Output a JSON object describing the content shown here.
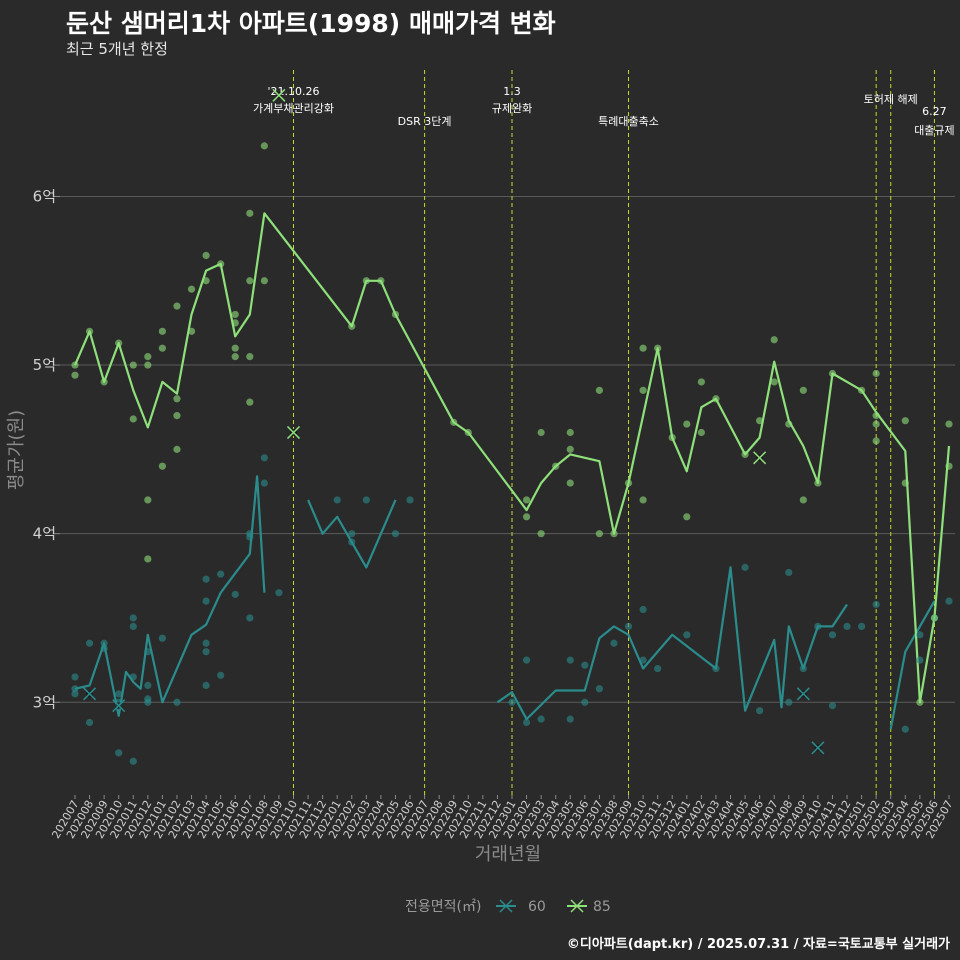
{
  "header": {
    "title": "둔산 샘머리1차 아파트(1998) 매매가격 변화",
    "subtitle": "최근 5개년 한정"
  },
  "footer": {
    "caption": "©디아파트(dapt.kr) / 2025.07.31 / 자료=국토교통부 실거래가"
  },
  "colors": {
    "background": "#2b2a2a",
    "grid": "#5a5a5a",
    "event_line": "#c8d92a",
    "s60": "#2a8c8c",
    "s85": "#8ee07a"
  },
  "chart_data": {
    "type": "line",
    "xlabel": "거래년월",
    "ylabel": "평균가(원)",
    "ylim": [
      2.45,
      6.75
    ],
    "yticks": [
      {
        "v": 3,
        "label": "3억"
      },
      {
        "v": 4,
        "label": "4억"
      },
      {
        "v": 5,
        "label": "5억"
      },
      {
        "v": 6,
        "label": "6억"
      }
    ],
    "x": [
      "202007",
      "202008",
      "202009",
      "202010",
      "202011",
      "202012",
      "202101",
      "202102",
      "202103",
      "202104",
      "202105",
      "202106",
      "202107",
      "202108",
      "202109",
      "202110",
      "202111",
      "202112",
      "202201",
      "202202",
      "202203",
      "202204",
      "202205",
      "202206",
      "202207",
      "202208",
      "202209",
      "202210",
      "202211",
      "202212",
      "202301",
      "202302",
      "202303",
      "202304",
      "202305",
      "202306",
      "202307",
      "202308",
      "202309",
      "202310",
      "202311",
      "202312",
      "202401",
      "202402",
      "202403",
      "202404",
      "202405",
      "202406",
      "202407",
      "202408",
      "202409",
      "202410",
      "202411",
      "202412",
      "202501",
      "202502",
      "202503",
      "202504",
      "202505",
      "202506",
      "202507"
    ],
    "legend": {
      "title": "전용면적(㎡)",
      "items": [
        "60",
        "85"
      ]
    },
    "series": [
      {
        "name": "60",
        "segments": [
          [
            [
              "202007",
              3.08
            ],
            [
              "202008",
              3.1
            ],
            [
              "202009",
              3.35
            ],
            [
              "202010",
              2.92
            ],
            [
              "202010.5",
              3.18
            ],
            [
              "202011",
              3.12
            ],
            [
              "202011.5",
              3.08
            ],
            [
              "202012",
              3.4
            ],
            [
              "202101",
              3.0
            ],
            [
              "202103",
              3.4
            ],
            [
              "202104",
              3.46
            ],
            [
              "202105",
              3.65
            ],
            [
              "202107",
              3.88
            ],
            [
              "202107.5",
              4.34
            ],
            [
              "202108",
              3.65
            ]
          ],
          [
            [
              "202111",
              4.2
            ],
            [
              "202112",
              4.0
            ],
            [
              "202201",
              4.1
            ],
            [
              "202203",
              3.8
            ],
            [
              "202204",
              4.0
            ],
            [
              "202205",
              4.2
            ]
          ],
          [
            [
              "202212",
              3.0
            ],
            [
              "202301",
              3.06
            ],
            [
              "202302",
              2.9
            ],
            [
              "202304",
              3.07
            ],
            [
              "202306",
              3.07
            ],
            [
              "202307",
              3.38
            ],
            [
              "202308",
              3.45
            ],
            [
              "202309",
              3.4
            ],
            [
              "202310",
              3.2
            ],
            [
              "202312",
              3.4
            ],
            [
              "202403",
              3.2
            ],
            [
              "202404",
              3.8
            ],
            [
              "202405",
              2.95
            ],
            [
              "202407",
              3.37
            ],
            [
              "202407.5",
              2.97
            ],
            [
              "202408",
              3.45
            ],
            [
              "202409",
              3.2
            ],
            [
              "202410",
              3.45
            ],
            [
              "202411",
              3.45
            ],
            [
              "202412",
              3.58
            ]
          ],
          [
            [
              "202503",
              2.84
            ],
            [
              "202504",
              3.3
            ],
            [
              "202505",
              3.45
            ],
            [
              "202506",
              3.6
            ]
          ]
        ],
        "points": [
          [
            "202007",
            3.15
          ],
          [
            "202007",
            3.05
          ],
          [
            "202007",
            3.08
          ],
          [
            "202008",
            2.88
          ],
          [
            "202008",
            3.35
          ],
          [
            "202009",
            3.35
          ],
          [
            "202009",
            3.32
          ],
          [
            "202010",
            2.7
          ],
          [
            "202010",
            3.05
          ],
          [
            "202010",
            3.0
          ],
          [
            "202011",
            2.65
          ],
          [
            "202011",
            3.5
          ],
          [
            "202011",
            3.45
          ],
          [
            "202011",
            3.15
          ],
          [
            "202012",
            3.3
          ],
          [
            "202012",
            3.02
          ],
          [
            "202012",
            3.0
          ],
          [
            "202012",
            3.1
          ],
          [
            "202101",
            3.38
          ],
          [
            "202102",
            3.0
          ],
          [
            "202104",
            3.73
          ],
          [
            "202104",
            3.6
          ],
          [
            "202104",
            3.35
          ],
          [
            "202104",
            3.3
          ],
          [
            "202104",
            3.1
          ],
          [
            "202105",
            3.76
          ],
          [
            "202105",
            3.16
          ],
          [
            "202106",
            3.64
          ],
          [
            "202107",
            3.5
          ],
          [
            "202107",
            4.0
          ],
          [
            "202107",
            3.98
          ],
          [
            "202108",
            4.45
          ],
          [
            "202108",
            4.3
          ],
          [
            "202109",
            3.65
          ],
          [
            "202201",
            4.2
          ],
          [
            "202202",
            3.95
          ],
          [
            "202202",
            4.0
          ],
          [
            "202203",
            4.2
          ],
          [
            "202205",
            4.0
          ],
          [
            "202206",
            4.2
          ],
          [
            "202301",
            3.0
          ],
          [
            "202302",
            3.25
          ],
          [
            "202302",
            2.88
          ],
          [
            "202303",
            2.9
          ],
          [
            "202305",
            3.25
          ],
          [
            "202305",
            2.9
          ],
          [
            "202306",
            3.22
          ],
          [
            "202306",
            3.0
          ],
          [
            "202307",
            3.08
          ],
          [
            "202308",
            3.35
          ],
          [
            "202309",
            3.45
          ],
          [
            "202310",
            3.55
          ],
          [
            "202310",
            3.25
          ],
          [
            "202311",
            3.2
          ],
          [
            "202401",
            3.4
          ],
          [
            "202403",
            3.2
          ],
          [
            "202405",
            3.8
          ],
          [
            "202406",
            2.95
          ],
          [
            "202408",
            3.77
          ],
          [
            "202408",
            3.0
          ],
          [
            "202409",
            3.2
          ],
          [
            "202410",
            3.45
          ],
          [
            "202411",
            2.98
          ],
          [
            "202411",
            3.4
          ],
          [
            "202412",
            3.45
          ],
          [
            "202501",
            3.45
          ],
          [
            "202502",
            3.58
          ],
          [
            "202504",
            2.84
          ],
          [
            "202505",
            3.25
          ],
          [
            "202505",
            3.4
          ],
          [
            "202506",
            3.5
          ],
          [
            "202507",
            3.6
          ]
        ],
        "crosses": [
          [
            "202008",
            3.05
          ],
          [
            "202010",
            2.98
          ],
          [
            "202110",
            4.6
          ],
          [
            "202409",
            3.05
          ],
          [
            "202410",
            2.73
          ]
        ]
      },
      {
        "name": "85",
        "segments": [
          [
            [
              "202007",
              5.0
            ],
            [
              "202008",
              5.2
            ],
            [
              "202009",
              4.9
            ],
            [
              "202010",
              5.13
            ],
            [
              "202011",
              4.85
            ],
            [
              "202012",
              4.63
            ],
            [
              "202101",
              4.9
            ],
            [
              "202102",
              4.83
            ],
            [
              "202103",
              5.3
            ],
            [
              "202104",
              5.56
            ],
            [
              "202105",
              5.6
            ],
            [
              "202106",
              5.17
            ],
            [
              "202107",
              5.3
            ],
            [
              "202108",
              5.9
            ],
            [
              "202202",
              5.23
            ],
            [
              "202203",
              5.5
            ],
            [
              "202204",
              5.5
            ],
            [
              "202205",
              5.3
            ],
            [
              "202209",
              4.66
            ],
            [
              "202210",
              4.6
            ],
            [
              "202302",
              4.14
            ],
            [
              "202303",
              4.3
            ],
            [
              "202304",
              4.4
            ],
            [
              "202305",
              4.47
            ],
            [
              "202307",
              4.43
            ],
            [
              "202308",
              4.0
            ],
            [
              "202309",
              4.3
            ],
            [
              "202311",
              5.1
            ],
            [
              "202312",
              4.57
            ],
            [
              "202401",
              4.37
            ],
            [
              "202402",
              4.75
            ],
            [
              "202403",
              4.8
            ],
            [
              "202405",
              4.47
            ],
            [
              "202406",
              4.57
            ],
            [
              "202407",
              5.02
            ],
            [
              "202408",
              4.67
            ],
            [
              "202409",
              4.52
            ],
            [
              "202410",
              4.3
            ],
            [
              "202411",
              4.95
            ],
            [
              "202501",
              4.85
            ],
            [
              "202502",
              4.72
            ],
            [
              "202504",
              4.49
            ],
            [
              "202505",
              3.0
            ],
            [
              "202506",
              3.5
            ],
            [
              "202507",
              4.52
            ]
          ]
        ],
        "points": [
          [
            "202007",
            5.0
          ],
          [
            "202007",
            4.94
          ],
          [
            "202008",
            5.2
          ],
          [
            "202009",
            4.9
          ],
          [
            "202010",
            5.13
          ],
          [
            "202011",
            5.0
          ],
          [
            "202011",
            4.68
          ],
          [
            "202012",
            5.05
          ],
          [
            "202012",
            5.0
          ],
          [
            "202012",
            4.2
          ],
          [
            "202012",
            3.85
          ],
          [
            "202101",
            5.2
          ],
          [
            "202101",
            5.1
          ],
          [
            "202101",
            4.4
          ],
          [
            "202102",
            5.35
          ],
          [
            "202102",
            4.8
          ],
          [
            "202102",
            4.7
          ],
          [
            "202102",
            4.5
          ],
          [
            "202103",
            5.45
          ],
          [
            "202103",
            5.2
          ],
          [
            "202104",
            5.65
          ],
          [
            "202104",
            5.5
          ],
          [
            "202105",
            5.6
          ],
          [
            "202106",
            5.3
          ],
          [
            "202106",
            5.25
          ],
          [
            "202106",
            5.1
          ],
          [
            "202106",
            5.05
          ],
          [
            "202107",
            5.9
          ],
          [
            "202107",
            5.5
          ],
          [
            "202107",
            5.05
          ],
          [
            "202107",
            4.78
          ],
          [
            "202108",
            6.3
          ],
          [
            "202108",
            5.5
          ],
          [
            "202202",
            5.23
          ],
          [
            "202203",
            5.5
          ],
          [
            "202204",
            5.5
          ],
          [
            "202205",
            5.3
          ],
          [
            "202209",
            4.66
          ],
          [
            "202210",
            4.6
          ],
          [
            "202302",
            4.2
          ],
          [
            "202302",
            4.1
          ],
          [
            "202303",
            4.6
          ],
          [
            "202303",
            4.0
          ],
          [
            "202304",
            4.4
          ],
          [
            "202305",
            4.6
          ],
          [
            "202305",
            4.5
          ],
          [
            "202305",
            4.3
          ],
          [
            "202307",
            4.85
          ],
          [
            "202307",
            4.0
          ],
          [
            "202308",
            4.0
          ],
          [
            "202309",
            4.3
          ],
          [
            "202310",
            5.1
          ],
          [
            "202310",
            4.85
          ],
          [
            "202310",
            4.2
          ],
          [
            "202311",
            5.1
          ],
          [
            "202312",
            4.57
          ],
          [
            "202401",
            4.1
          ],
          [
            "202401",
            4.65
          ],
          [
            "202402",
            4.9
          ],
          [
            "202402",
            4.6
          ],
          [
            "202403",
            4.8
          ],
          [
            "202405",
            4.47
          ],
          [
            "202406",
            4.67
          ],
          [
            "202407",
            5.15
          ],
          [
            "202407",
            4.9
          ],
          [
            "202408",
            4.65
          ],
          [
            "202409",
            4.85
          ],
          [
            "202409",
            4.2
          ],
          [
            "202410",
            4.3
          ],
          [
            "202411",
            4.95
          ],
          [
            "202501",
            4.85
          ],
          [
            "202502",
            4.95
          ],
          [
            "202502",
            4.7
          ],
          [
            "202502",
            4.65
          ],
          [
            "202502",
            4.55
          ],
          [
            "202504",
            4.67
          ],
          [
            "202504",
            4.3
          ],
          [
            "202505",
            3.0
          ],
          [
            "202506",
            3.5
          ],
          [
            "202507",
            4.65
          ],
          [
            "202507",
            4.4
          ]
        ],
        "crosses": [
          [
            "202109",
            6.6
          ],
          [
            "202110",
            4.6
          ],
          [
            "202406",
            4.45
          ]
        ]
      }
    ],
    "events": [
      {
        "x": "202110",
        "label1": "'21.10.26",
        "label2": "가계부채관리강화"
      },
      {
        "x": "202207",
        "label1": "",
        "label2": "DSR 3단계"
      },
      {
        "x": "202301",
        "label1": "1.3",
        "label2": "규제완화"
      },
      {
        "x": "202309",
        "label1": "",
        "label2": "특례대출축소"
      },
      {
        "x": "202502",
        "label1": "",
        "label2": ""
      },
      {
        "x": "202503",
        "label1": "",
        "label2": "토허제 해제"
      },
      {
        "x": "202506",
        "label1": "6.27",
        "label2": "대출규제"
      }
    ]
  }
}
